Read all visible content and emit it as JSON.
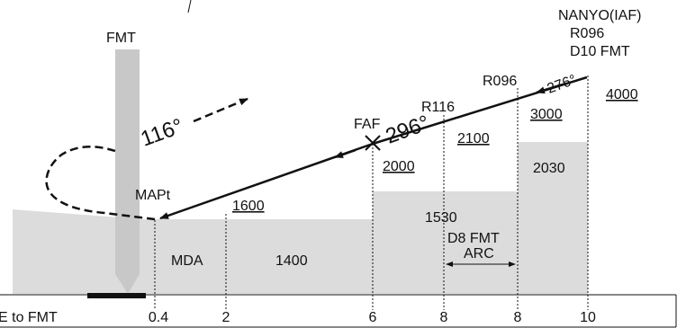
{
  "labels": {
    "fmt": "FMT",
    "iaf_name": "NANYO(IAF)",
    "iaf_radial": "R096",
    "iaf_dme": "D10 FMT",
    "r096": "R096",
    "r116": "R116",
    "faf": "FAF",
    "mapt": "MAPt",
    "mda": "MDA",
    "missed_course": "116°",
    "final_course": "296°",
    "entry_course": "276°",
    "arc_line1": "D8 FMT",
    "arc_line2": "ARC"
  },
  "altitudes": {
    "a4000": "4000",
    "a3000": "3000",
    "a2100": "2100",
    "a2000": "2000",
    "a1600": "1600"
  },
  "obstacles": {
    "o2030": "2030",
    "o1530": "1530",
    "o1400": "1400"
  },
  "distance_scale": {
    "label": "E to FMT",
    "ticks": [
      "0.4",
      "2",
      "6",
      "8",
      "8",
      "10"
    ]
  },
  "colors": {
    "terrain": "#dcdcdc",
    "fmt_beam": "#c8c8c8",
    "line": "#111111"
  }
}
